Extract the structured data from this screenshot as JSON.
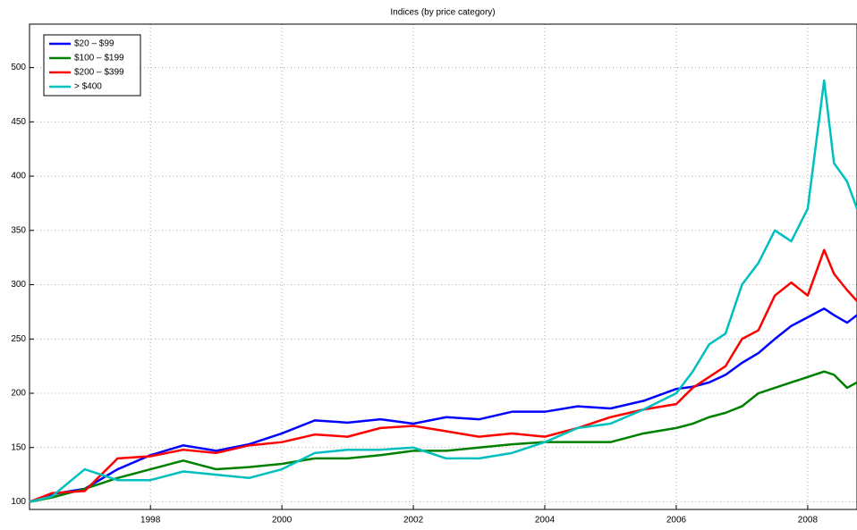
{
  "chart_data": {
    "type": "line",
    "title": "Indices (by price category)",
    "x": [
      1996.16,
      1996.5,
      1997,
      1997.5,
      1998,
      1998.5,
      1999,
      1999.5,
      2000,
      2000.5,
      2001,
      2001.5,
      2002,
      2002.5,
      2003,
      2003.5,
      2004,
      2004.5,
      2005,
      2005.5,
      2006,
      2006.25,
      2006.5,
      2006.75,
      2007,
      2007.25,
      2007.5,
      2007.75,
      2008,
      2008.25,
      2008.4,
      2008.6,
      2008.75
    ],
    "series": [
      {
        "name": "$20 – $99",
        "color": "#0000ff",
        "values": [
          100,
          107,
          112,
          130,
          143,
          152,
          147,
          153,
          163,
          175,
          173,
          176,
          172,
          178,
          176,
          183,
          183,
          188,
          186,
          193,
          204,
          206,
          210,
          217,
          228,
          237,
          250,
          262,
          270,
          278,
          272,
          265,
          272
        ]
      },
      {
        "name": "$100 – $199",
        "color": "#008000",
        "values": [
          100,
          104,
          112,
          122,
          130,
          138,
          130,
          132,
          135,
          140,
          140,
          143,
          147,
          147,
          150,
          153,
          155,
          155,
          155,
          163,
          168,
          172,
          178,
          182,
          188,
          200,
          205,
          210,
          215,
          220,
          217,
          205,
          210
        ]
      },
      {
        "name": "$200 – $399",
        "color": "#ff0000",
        "values": [
          100,
          108,
          110,
          140,
          142,
          148,
          145,
          152,
          155,
          162,
          160,
          168,
          170,
          165,
          160,
          163,
          160,
          168,
          178,
          185,
          190,
          205,
          215,
          225,
          250,
          258,
          290,
          302,
          290,
          332,
          310,
          295,
          285
        ]
      },
      {
        "name": "> $400",
        "color": "#00bfbf",
        "values": [
          100,
          105,
          130,
          120,
          120,
          128,
          125,
          122,
          130,
          145,
          148,
          148,
          150,
          140,
          140,
          145,
          155,
          168,
          172,
          185,
          200,
          220,
          245,
          255,
          300,
          320,
          350,
          340,
          370,
          488,
          412,
          395,
          370
        ]
      }
    ],
    "xlim": [
      1996.16,
      2008.75
    ],
    "ylim": [
      93,
      540
    ],
    "xticks": [
      1998,
      2000,
      2002,
      2004,
      2006,
      2008
    ],
    "yticks": [
      100,
      150,
      200,
      250,
      300,
      350,
      400,
      450,
      500
    ],
    "grid": true,
    "legend": "upper left"
  }
}
